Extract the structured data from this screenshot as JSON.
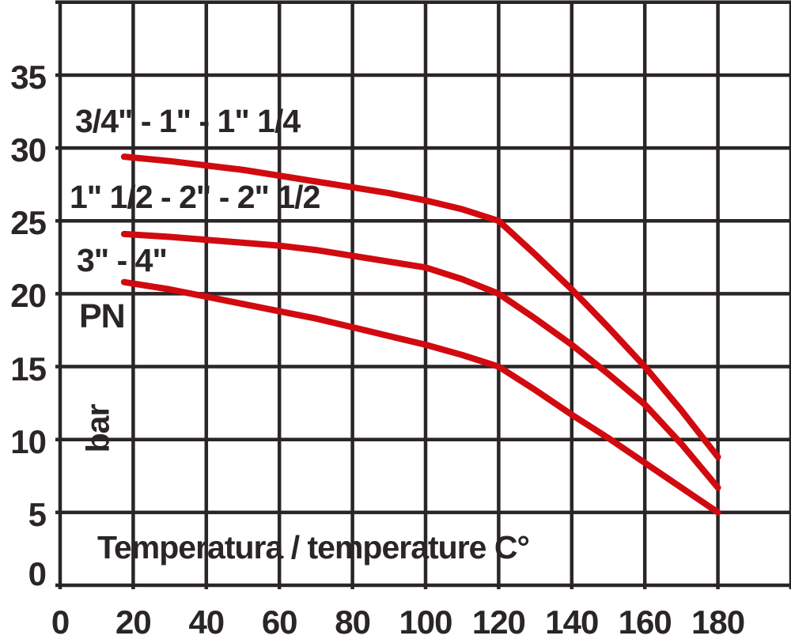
{
  "chart_data": {
    "type": "line",
    "title": "",
    "xlabel": "Temperatura / temperature C°",
    "ylabel": "bar",
    "pn_label": "PN",
    "xlim": [
      0,
      200
    ],
    "ylim": [
      0,
      40
    ],
    "x_ticks": [
      0,
      20,
      40,
      60,
      80,
      100,
      120,
      140,
      160,
      180
    ],
    "y_ticks": [
      35,
      30,
      25,
      20,
      15,
      10,
      5,
      0
    ],
    "grid": true,
    "legend_position": "inline-annotations",
    "colors": {
      "line": "#d10a10",
      "grid": "#2a2526",
      "text": "#2a2526",
      "background": "#ffffff"
    },
    "series": [
      {
        "name": "3/4\" - 1\" - 1\" 1/4",
        "points": [
          [
            17.5,
            29.4
          ],
          [
            30,
            29.1
          ],
          [
            40,
            28.8
          ],
          [
            50,
            28.5
          ],
          [
            60,
            28.1
          ],
          [
            70,
            27.7
          ],
          [
            80,
            27.3
          ],
          [
            90,
            26.9
          ],
          [
            100,
            26.4
          ],
          [
            110,
            25.8
          ],
          [
            120,
            25.0
          ],
          [
            130,
            22.7
          ],
          [
            140,
            20.3
          ],
          [
            150,
            17.7
          ],
          [
            160,
            15.0
          ],
          [
            170,
            12.0
          ],
          [
            180,
            8.8
          ]
        ]
      },
      {
        "name": "1\" 1/2 - 2\" - 2\" 1/2",
        "points": [
          [
            17.5,
            24.1
          ],
          [
            30,
            23.9
          ],
          [
            40,
            23.7
          ],
          [
            50,
            23.5
          ],
          [
            60,
            23.3
          ],
          [
            70,
            23.0
          ],
          [
            80,
            22.6
          ],
          [
            90,
            22.2
          ],
          [
            100,
            21.8
          ],
          [
            110,
            21.0
          ],
          [
            120,
            20.0
          ],
          [
            130,
            18.3
          ],
          [
            140,
            16.5
          ],
          [
            150,
            14.5
          ],
          [
            160,
            12.4
          ],
          [
            170,
            9.7
          ],
          [
            180,
            6.7
          ]
        ]
      },
      {
        "name": "3\" - 4\"",
        "points": [
          [
            17.5,
            20.8
          ],
          [
            30,
            20.3
          ],
          [
            40,
            19.8
          ],
          [
            50,
            19.3
          ],
          [
            60,
            18.8
          ],
          [
            70,
            18.3
          ],
          [
            80,
            17.7
          ],
          [
            90,
            17.1
          ],
          [
            100,
            16.5
          ],
          [
            110,
            15.8
          ],
          [
            120,
            15.0
          ],
          [
            130,
            13.4
          ],
          [
            140,
            11.7
          ],
          [
            150,
            10.1
          ],
          [
            160,
            8.4
          ],
          [
            170,
            6.7
          ],
          [
            180,
            5.0
          ]
        ]
      }
    ]
  }
}
